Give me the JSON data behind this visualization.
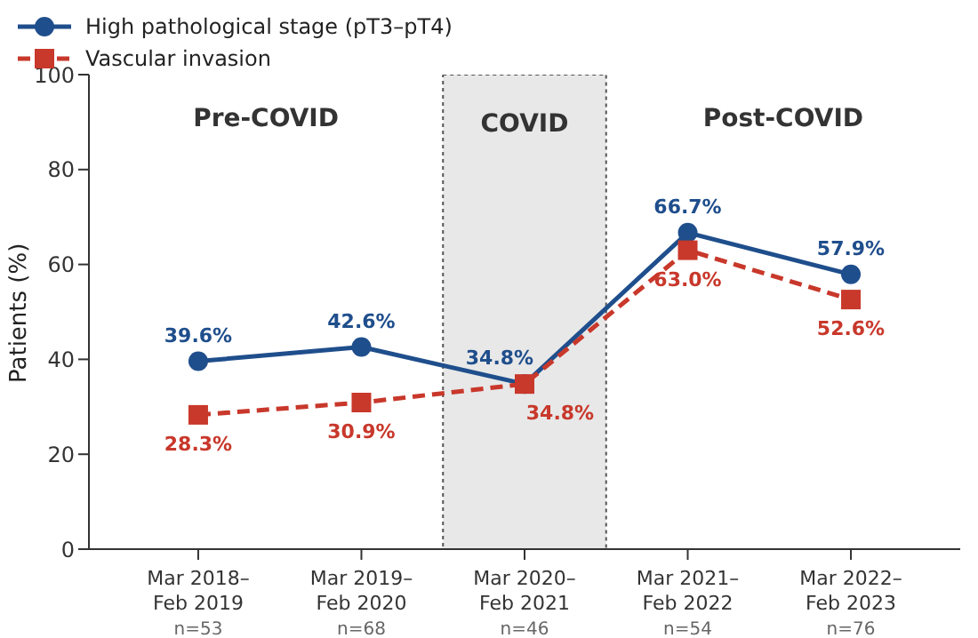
{
  "chart_data": {
    "type": "line",
    "ylabel": "Patients (%)",
    "categories": [
      "Mar 2018–\nFeb 2019\nn=53",
      "Mar 2019–\nFeb 2020\nn=68",
      "Mar 2020–\nFeb 2021\nn=46",
      "Mar 2021–\nFeb 2022\nn=54",
      "Mar 2022–\nFeb 2023\nn=76"
    ],
    "series": [
      {
        "name": "High pathological stage (pT3–pT4)",
        "color": "#1f4e8c",
        "values": [
          39.6,
          42.6,
          34.8,
          66.7,
          57.9
        ],
        "value_labels": [
          "39.6%",
          "42.6%",
          "34.8%",
          "66.7%",
          "57.9%"
        ],
        "marker": "circle",
        "line_style": "solid"
      },
      {
        "name": "Vascular invasion",
        "color": "#c8382b",
        "values": [
          28.3,
          30.9,
          34.8,
          63.0,
          52.6
        ],
        "value_labels": [
          "28.3%",
          "30.9%",
          "34.8%",
          "63.0%",
          "52.6%"
        ],
        "marker": "square",
        "line_style": "dashed"
      }
    ],
    "ylim": [
      0,
      100
    ],
    "yticks": [
      0,
      20,
      40,
      60,
      80,
      100
    ],
    "grid": false,
    "legend": "top left",
    "bands": [
      {
        "axis": "x",
        "from": "Mar 2020–\nFeb 2021\nn=46",
        "to": "Mar 2020–\nFeb 2021\nn=46",
        "label": "COVID",
        "color": "#e8e8e8"
      }
    ],
    "annotations": [
      "Pre-COVID",
      "Post-COVID"
    ]
  }
}
